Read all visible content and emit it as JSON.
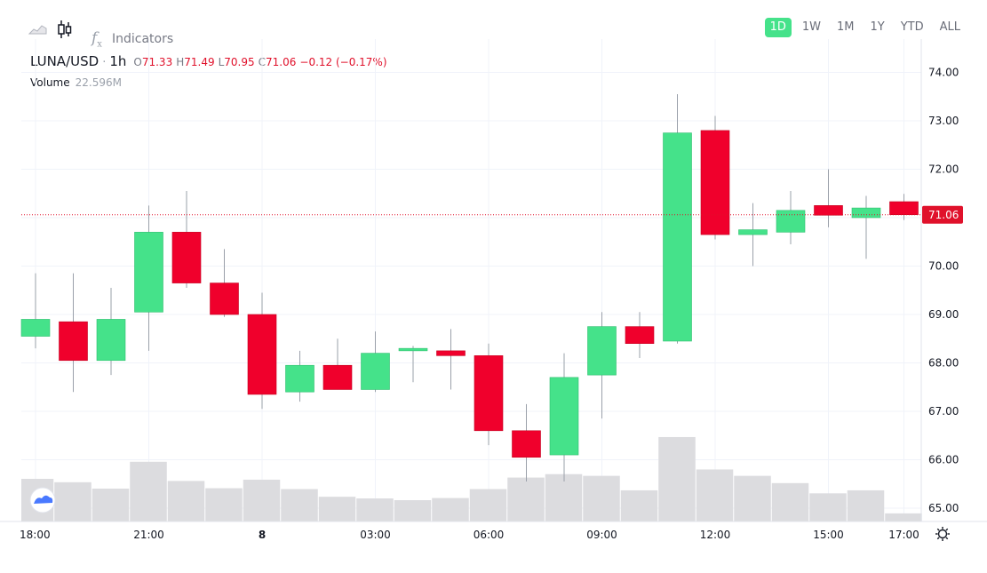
{
  "toolbar": {
    "icons": [
      "area-chart-icon",
      "candlestick-icon",
      "fx-icon"
    ],
    "indicators_label": "Indicators",
    "fx_glyph": "f"
  },
  "range_buttons": [
    {
      "label": "1D",
      "active": true
    },
    {
      "label": "1W",
      "active": false
    },
    {
      "label": "1M",
      "active": false
    },
    {
      "label": "1Y",
      "active": false
    },
    {
      "label": "YTD",
      "active": false
    },
    {
      "label": "ALL",
      "active": false
    }
  ],
  "legend": {
    "symbol": "LUNA/USD",
    "separator": "·",
    "timeframe": "1h",
    "o_label": "O",
    "o_value": "71.33",
    "h_label": "H",
    "h_value": "71.49",
    "l_label": "L",
    "l_value": "70.95",
    "c_label": "C",
    "c_value": "71.06",
    "change": "−0.12 (−0.17%)"
  },
  "volume_legend": {
    "label": "Volume",
    "value": "22.596M"
  },
  "colors": {
    "up": "#45e28a",
    "down": "#f0002c",
    "volume": "#dcdcdf",
    "grid": "#f0f3fa",
    "price_line": "#e0112b",
    "accent": "#45e28a"
  },
  "chart_data": {
    "type": "candlestick",
    "symbol": "LUNA/USD",
    "interval": "1h",
    "ylim": [
      64.75,
      74.35
    ],
    "y_ticks": [
      "74.00",
      "73.00",
      "72.00",
      "71.00",
      "70.00",
      "69.00",
      "68.00",
      "67.00",
      "66.00",
      "65.00"
    ],
    "y_tick_values": [
      74,
      73,
      72,
      71,
      70,
      69,
      68,
      67,
      66,
      65
    ],
    "x_ticks": [
      {
        "label": "18:00",
        "index": 0
      },
      {
        "label": "21:00",
        "index": 3
      },
      {
        "label": "8",
        "index": 6
      },
      {
        "label": "03:00",
        "index": 9
      },
      {
        "label": "06:00",
        "index": 12
      },
      {
        "label": "09:00",
        "index": 15
      },
      {
        "label": "12:00",
        "index": 18
      },
      {
        "label": "15:00",
        "index": 21
      },
      {
        "label": "17:00",
        "index": 23
      }
    ],
    "bold_x_ticks": [
      "8"
    ],
    "last_price": {
      "value": 71.06,
      "label": "71.06"
    },
    "candles": [
      {
        "o": 68.55,
        "h": 69.85,
        "l": 68.3,
        "c": 68.9
      },
      {
        "o": 68.85,
        "h": 69.85,
        "l": 67.4,
        "c": 68.05
      },
      {
        "o": 68.05,
        "h": 69.55,
        "l": 67.75,
        "c": 68.9
      },
      {
        "o": 69.05,
        "h": 71.25,
        "l": 68.25,
        "c": 70.7
      },
      {
        "o": 70.7,
        "h": 71.55,
        "l": 69.55,
        "c": 69.65
      },
      {
        "o": 69.65,
        "h": 70.35,
        "l": 68.95,
        "c": 69.0
      },
      {
        "o": 69.0,
        "h": 69.45,
        "l": 67.05,
        "c": 67.35
      },
      {
        "o": 67.4,
        "h": 68.25,
        "l": 67.2,
        "c": 67.95
      },
      {
        "o": 67.95,
        "h": 68.5,
        "l": 67.45,
        "c": 67.45
      },
      {
        "o": 67.45,
        "h": 68.65,
        "l": 67.4,
        "c": 68.2
      },
      {
        "o": 68.25,
        "h": 68.35,
        "l": 67.6,
        "c": 68.3
      },
      {
        "o": 68.25,
        "h": 68.7,
        "l": 67.45,
        "c": 68.15
      },
      {
        "o": 68.15,
        "h": 68.4,
        "l": 66.3,
        "c": 66.6
      },
      {
        "o": 66.6,
        "h": 67.15,
        "l": 65.55,
        "c": 66.05
      },
      {
        "o": 66.1,
        "h": 68.2,
        "l": 65.55,
        "c": 67.7
      },
      {
        "o": 67.75,
        "h": 69.05,
        "l": 66.85,
        "c": 68.75
      },
      {
        "o": 68.75,
        "h": 69.05,
        "l": 68.1,
        "c": 68.4
      },
      {
        "o": 68.45,
        "h": 73.55,
        "l": 68.4,
        "c": 72.75
      },
      {
        "o": 72.8,
        "h": 73.1,
        "l": 70.55,
        "c": 70.65
      },
      {
        "o": 70.65,
        "h": 71.3,
        "l": 70.0,
        "c": 70.75
      },
      {
        "o": 70.7,
        "h": 71.55,
        "l": 70.45,
        "c": 71.15
      },
      {
        "o": 71.25,
        "h": 72.0,
        "l": 70.8,
        "c": 71.05
      },
      {
        "o": 71.0,
        "h": 71.45,
        "l": 70.15,
        "c": 71.2
      },
      {
        "o": 71.33,
        "h": 71.49,
        "l": 70.95,
        "c": 71.06
      }
    ],
    "volume": [
      100,
      92,
      77,
      140,
      95,
      78,
      98,
      76,
      58,
      54,
      50,
      55,
      76,
      103,
      111,
      107,
      73,
      198,
      122,
      107,
      90,
      66,
      73,
      19
    ]
  },
  "axis_icons": [
    "settings-icon"
  ],
  "logo": "tradingview-cloud-logo"
}
